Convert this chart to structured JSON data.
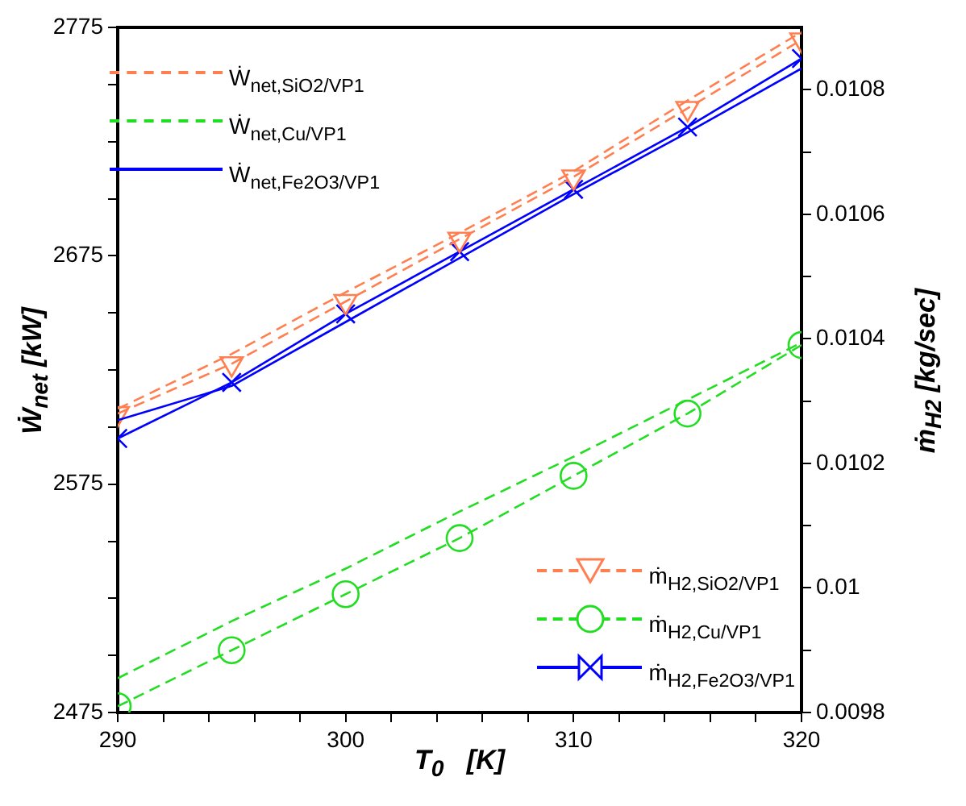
{
  "chart_data": {
    "type": "line",
    "xlabel": "T$_{0}$   [K]",
    "ylabel": "Ẇ$_{net}$ [kW]",
    "y2label": "ṁ$_{H2}$ [kg/sec]",
    "x": [
      290,
      295,
      300,
      305,
      310,
      315,
      320
    ],
    "xlim": [
      290,
      320
    ],
    "xticks": [
      290,
      {
        "value": 292,
        "label": null
      },
      {
        "value": 294,
        "label": null
      },
      {
        "value": 296,
        "label": null
      },
      {
        "value": 298,
        "label": null
      },
      300,
      {
        "value": 302,
        "label": null
      },
      {
        "value": 304,
        "label": null
      },
      {
        "value": 306,
        "label": null
      },
      {
        "value": 308,
        "label": null
      },
      310,
      {
        "value": 312,
        "label": null
      },
      {
        "value": 314,
        "label": null
      },
      {
        "value": 316,
        "label": null
      },
      {
        "value": 318,
        "label": null
      },
      320
    ],
    "ylim": [
      2475,
      2775
    ],
    "yticks": [
      2475,
      {
        "value": 2500,
        "label": null
      },
      {
        "value": 2525,
        "label": null
      },
      {
        "value": 2550,
        "label": null
      },
      2575,
      {
        "value": 2600,
        "label": null
      },
      {
        "value": 2625,
        "label": null
      },
      {
        "value": 2650,
        "label": null
      },
      2675,
      {
        "value": 2700,
        "label": null
      },
      {
        "value": 2725,
        "label": null
      },
      {
        "value": 2750,
        "label": null
      },
      2775
    ],
    "y2lim": [
      0.0098,
      0.0109
    ],
    "y2ticks": [
      0.0098,
      {
        "value": 0.0099,
        "label": null
      },
      0.01,
      {
        "value": 0.0101,
        "label": null
      },
      0.0102,
      {
        "value": 0.0103,
        "label": null
      },
      0.0104,
      {
        "value": 0.0105,
        "label": null
      },
      0.0106,
      {
        "value": 0.0107,
        "label": null
      },
      0.0108
    ],
    "grid": false,
    "legend": [
      "top left",
      "bottom right"
    ],
    "series": [
      {
        "name": "Ẇ$_{net,SiO2/VP1}$",
        "color": "#ff7f50",
        "axis": "y",
        "line_style": "dashed",
        "marker": "none",
        "values": [
          2608,
          2632,
          2659,
          2685,
          2712,
          2743,
          2773
        ]
      },
      {
        "name": "Ẇ$_{net,Cu/VP1}$",
        "color": "#22dd22",
        "axis": "y",
        "line_style": "dashed",
        "marker": "none",
        "values": [
          2490,
          2515,
          2538,
          2563,
          2587,
          2612,
          2637
        ]
      },
      {
        "name": "Ẇ$_{net,Fe2O3/VP1}$",
        "color": "#0000ff",
        "axis": "y",
        "line_style": "solid",
        "marker": "none",
        "values": [
          2603,
          2618,
          2646,
          2674,
          2702,
          2729,
          2757
        ]
      },
      {
        "name": "ṁ$_{H2,SiO2/VP1}$",
        "color": "#ff7f50",
        "axis": "y2",
        "line_style": "dashed",
        "marker": "triangle",
        "values": [
          0.01028,
          0.01036,
          0.01046,
          0.01056,
          0.01066,
          0.01077,
          0.01088
        ]
      },
      {
        "name": "ṁ$_{H2,Cu/VP1}$",
        "color": "#22dd22",
        "axis": "y2",
        "line_style": "dashed",
        "marker": "circle",
        "values": [
          0.00981,
          0.0099,
          0.00999,
          0.01008,
          0.01018,
          0.01028,
          0.01039
        ]
      },
      {
        "name": "ṁ$_{H2,Fe2O3/VP1}$",
        "color": "#0000ff",
        "axis": "y2",
        "line_style": "solid",
        "marker": "cross",
        "values": [
          0.01024,
          0.01033,
          0.01044,
          0.01054,
          0.01064,
          0.01074,
          0.01085
        ]
      }
    ]
  }
}
